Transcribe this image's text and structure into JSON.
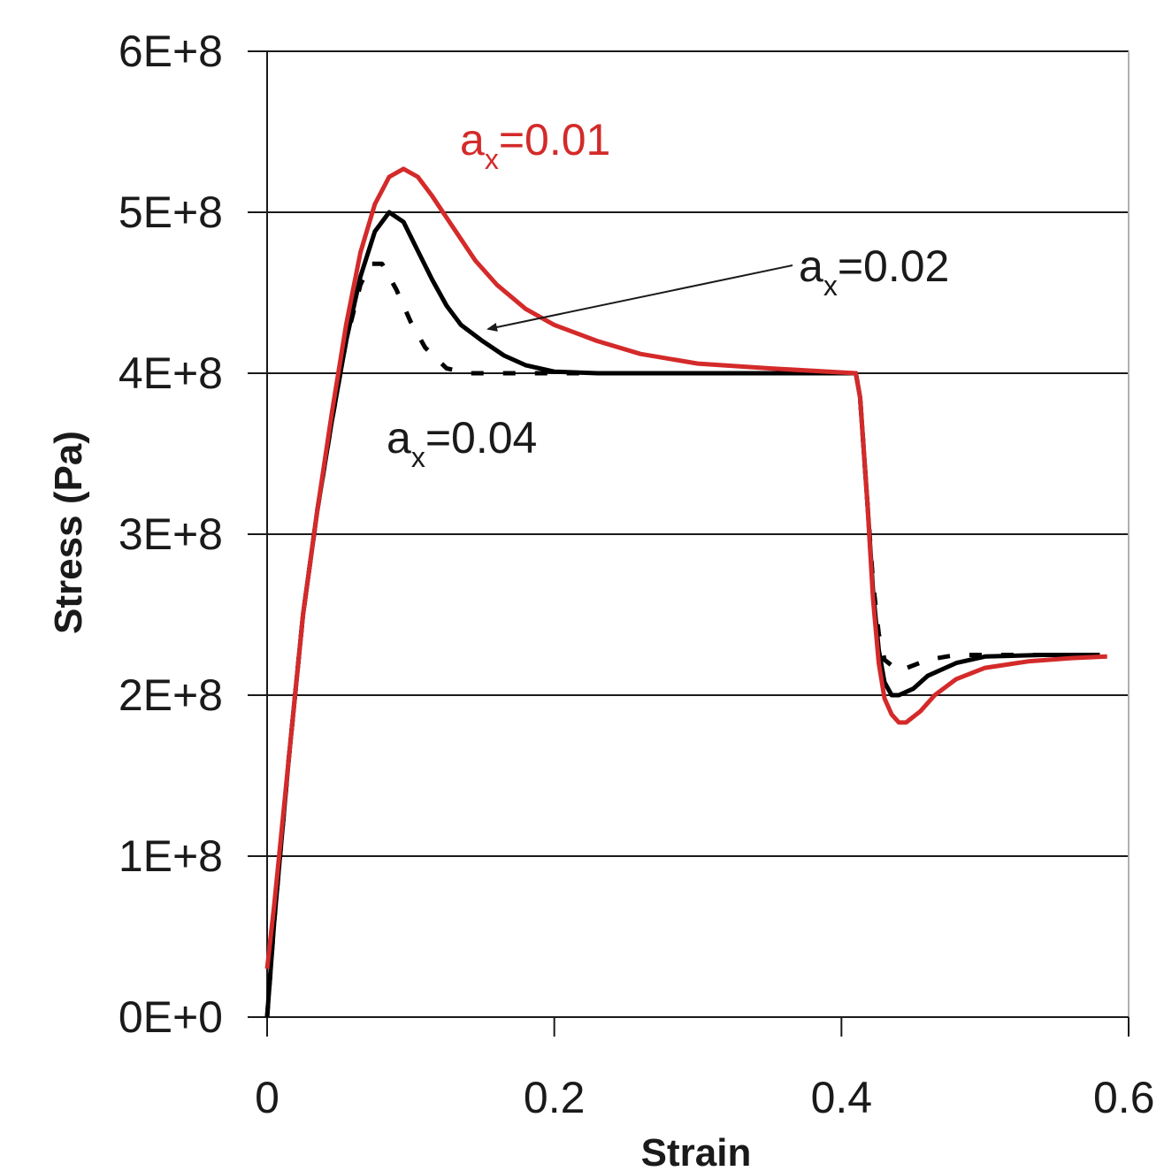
{
  "chart_data": {
    "type": "line",
    "title": "",
    "xlabel": "Strain",
    "ylabel": "Stress (Pa)",
    "xlim": [
      0,
      0.6
    ],
    "ylim": [
      0,
      600000000
    ],
    "xticks": [
      {
        "value": 0,
        "label": "0"
      },
      {
        "value": 0.2,
        "label": "0.2"
      },
      {
        "value": 0.4,
        "label": "0.4"
      },
      {
        "value": 0.6,
        "label": "0.6"
      }
    ],
    "yticks": [
      {
        "value": 0,
        "label": "0E+0"
      },
      {
        "value": 100000000,
        "label": "1E+8"
      },
      {
        "value": 200000000,
        "label": "2E+8"
      },
      {
        "value": 300000000,
        "label": "3E+8"
      },
      {
        "value": 400000000,
        "label": "4E+8"
      },
      {
        "value": 500000000,
        "label": "5E+8"
      },
      {
        "value": 600000000,
        "label": "6E+8"
      }
    ],
    "grid": "horizontal",
    "series": [
      {
        "color": "#000000",
        "style": "dashed",
        "x": [
          0.0,
          0.005,
          0.015,
          0.025,
          0.035,
          0.045,
          0.055,
          0.065,
          0.072,
          0.08,
          0.09,
          0.1,
          0.11,
          0.125,
          0.14,
          0.15,
          0.17,
          0.2,
          0.25,
          0.3,
          0.35,
          0.41,
          0.413,
          0.418,
          0.422,
          0.426,
          0.43,
          0.44,
          0.46,
          0.48,
          0.5,
          0.54,
          0.58
        ],
        "y": [
          0,
          60000000,
          160000000,
          250000000,
          315000000,
          370000000,
          420000000,
          455000000,
          468000000,
          468000000,
          452000000,
          432000000,
          416000000,
          403000000,
          400000000,
          400000000,
          400000000,
          400000000,
          400000000,
          400000000,
          400000000,
          400000000,
          385000000,
          320000000,
          270000000,
          238000000,
          222000000,
          215000000,
          222000000,
          225000000,
          225000000,
          225000000,
          225000000
        ]
      },
      {
        "color": "#000000",
        "style": "solid",
        "x": [
          0.0,
          0.005,
          0.015,
          0.025,
          0.035,
          0.045,
          0.055,
          0.065,
          0.075,
          0.085,
          0.095,
          0.105,
          0.115,
          0.125,
          0.135,
          0.15,
          0.165,
          0.18,
          0.2,
          0.23,
          0.26,
          0.3,
          0.35,
          0.41,
          0.413,
          0.418,
          0.422,
          0.426,
          0.43,
          0.435,
          0.44,
          0.45,
          0.46,
          0.48,
          0.5,
          0.54,
          0.58
        ],
        "y": [
          0,
          60000000,
          160000000,
          250000000,
          315000000,
          370000000,
          420000000,
          460000000,
          488000000,
          500000000,
          494000000,
          476000000,
          458000000,
          442000000,
          430000000,
          420000000,
          411000000,
          405000000,
          401000000,
          400000000,
          400000000,
          400000000,
          400000000,
          400000000,
          385000000,
          320000000,
          265000000,
          228000000,
          208000000,
          200000000,
          200000000,
          204000000,
          212000000,
          220000000,
          224000000,
          225000000,
          225000000
        ]
      },
      {
        "color": "#d42a2a",
        "style": "solid",
        "x": [
          0.0,
          0.005,
          0.015,
          0.025,
          0.035,
          0.045,
          0.055,
          0.065,
          0.075,
          0.085,
          0.095,
          0.105,
          0.115,
          0.13,
          0.145,
          0.16,
          0.18,
          0.2,
          0.23,
          0.26,
          0.3,
          0.35,
          0.41,
          0.413,
          0.418,
          0.422,
          0.426,
          0.43,
          0.435,
          0.44,
          0.445,
          0.455,
          0.465,
          0.48,
          0.5,
          0.53,
          0.56,
          0.585
        ],
        "y": [
          30000000,
          70000000,
          160000000,
          250000000,
          315000000,
          375000000,
          430000000,
          475000000,
          505000000,
          522000000,
          527000000,
          522000000,
          510000000,
          490000000,
          470000000,
          455000000,
          440000000,
          430000000,
          420000000,
          412000000,
          406000000,
          403000000,
          400000000,
          385000000,
          320000000,
          260000000,
          220000000,
          198000000,
          188000000,
          183000000,
          183000000,
          190000000,
          200000000,
          210000000,
          217000000,
          221000000,
          223000000,
          224000000
        ]
      }
    ],
    "annotations": [
      {
        "main": "a",
        "sub": "x",
        "rest": "=0.01",
        "color": "#d42a2a"
      },
      {
        "main": "a",
        "sub": "x",
        "rest": "=0.02",
        "color": "#1a1a1a"
      },
      {
        "main": "a",
        "sub": "x",
        "rest": "=0.04",
        "color": "#1a1a1a"
      }
    ]
  }
}
